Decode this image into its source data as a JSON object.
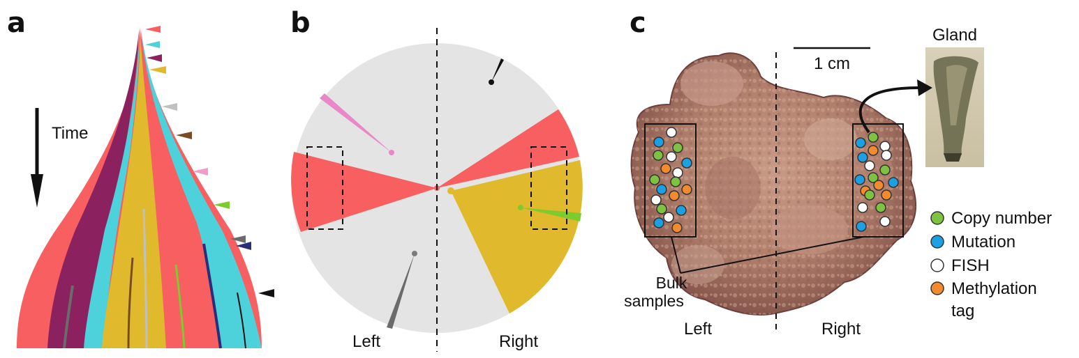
{
  "panels": {
    "a": {
      "letter": "a",
      "time_label": "Time",
      "colors": {
        "red": "#f75f60",
        "maroon": "#8c2160",
        "cyan": "#4dd2dc",
        "gold": "#e0b92c",
        "pink": "#ef9cc8",
        "green": "#7ecb2e",
        "silver": "#c0c0c0",
        "brown": "#7a4a24",
        "grey": "#6b6b6b",
        "navy": "#2a2f7a",
        "black": "#111111"
      },
      "markers": [
        "red",
        "cyan",
        "maroon",
        "gold",
        "silver",
        "brown",
        "pink",
        "green",
        "grey",
        "navy",
        "black"
      ]
    },
    "b": {
      "letter": "b",
      "left_label": "Left",
      "right_label": "Right",
      "colors": {
        "disc": "#e4e4e4",
        "red": "#f75f60",
        "gold": "#e0b92c",
        "green": "#7ecb2e",
        "pink": "#e987c8",
        "grey": "#7a7a7a",
        "black": "#111111"
      }
    },
    "c": {
      "letter": "c",
      "scale_label": "1 cm",
      "gland_label": "Gland",
      "bulk_label_line1": "Bulk",
      "bulk_label_line2": "samples",
      "left_label": "Left",
      "right_label": "Right",
      "legend": [
        {
          "label": "Copy number",
          "color": "#7ec242"
        },
        {
          "label": "Mutation",
          "color": "#1aa0e3"
        },
        {
          "label": "FISH",
          "color": "#ffffff"
        },
        {
          "label": "Methylation",
          "label2": "tag",
          "color": "#f28a2e"
        }
      ]
    }
  }
}
